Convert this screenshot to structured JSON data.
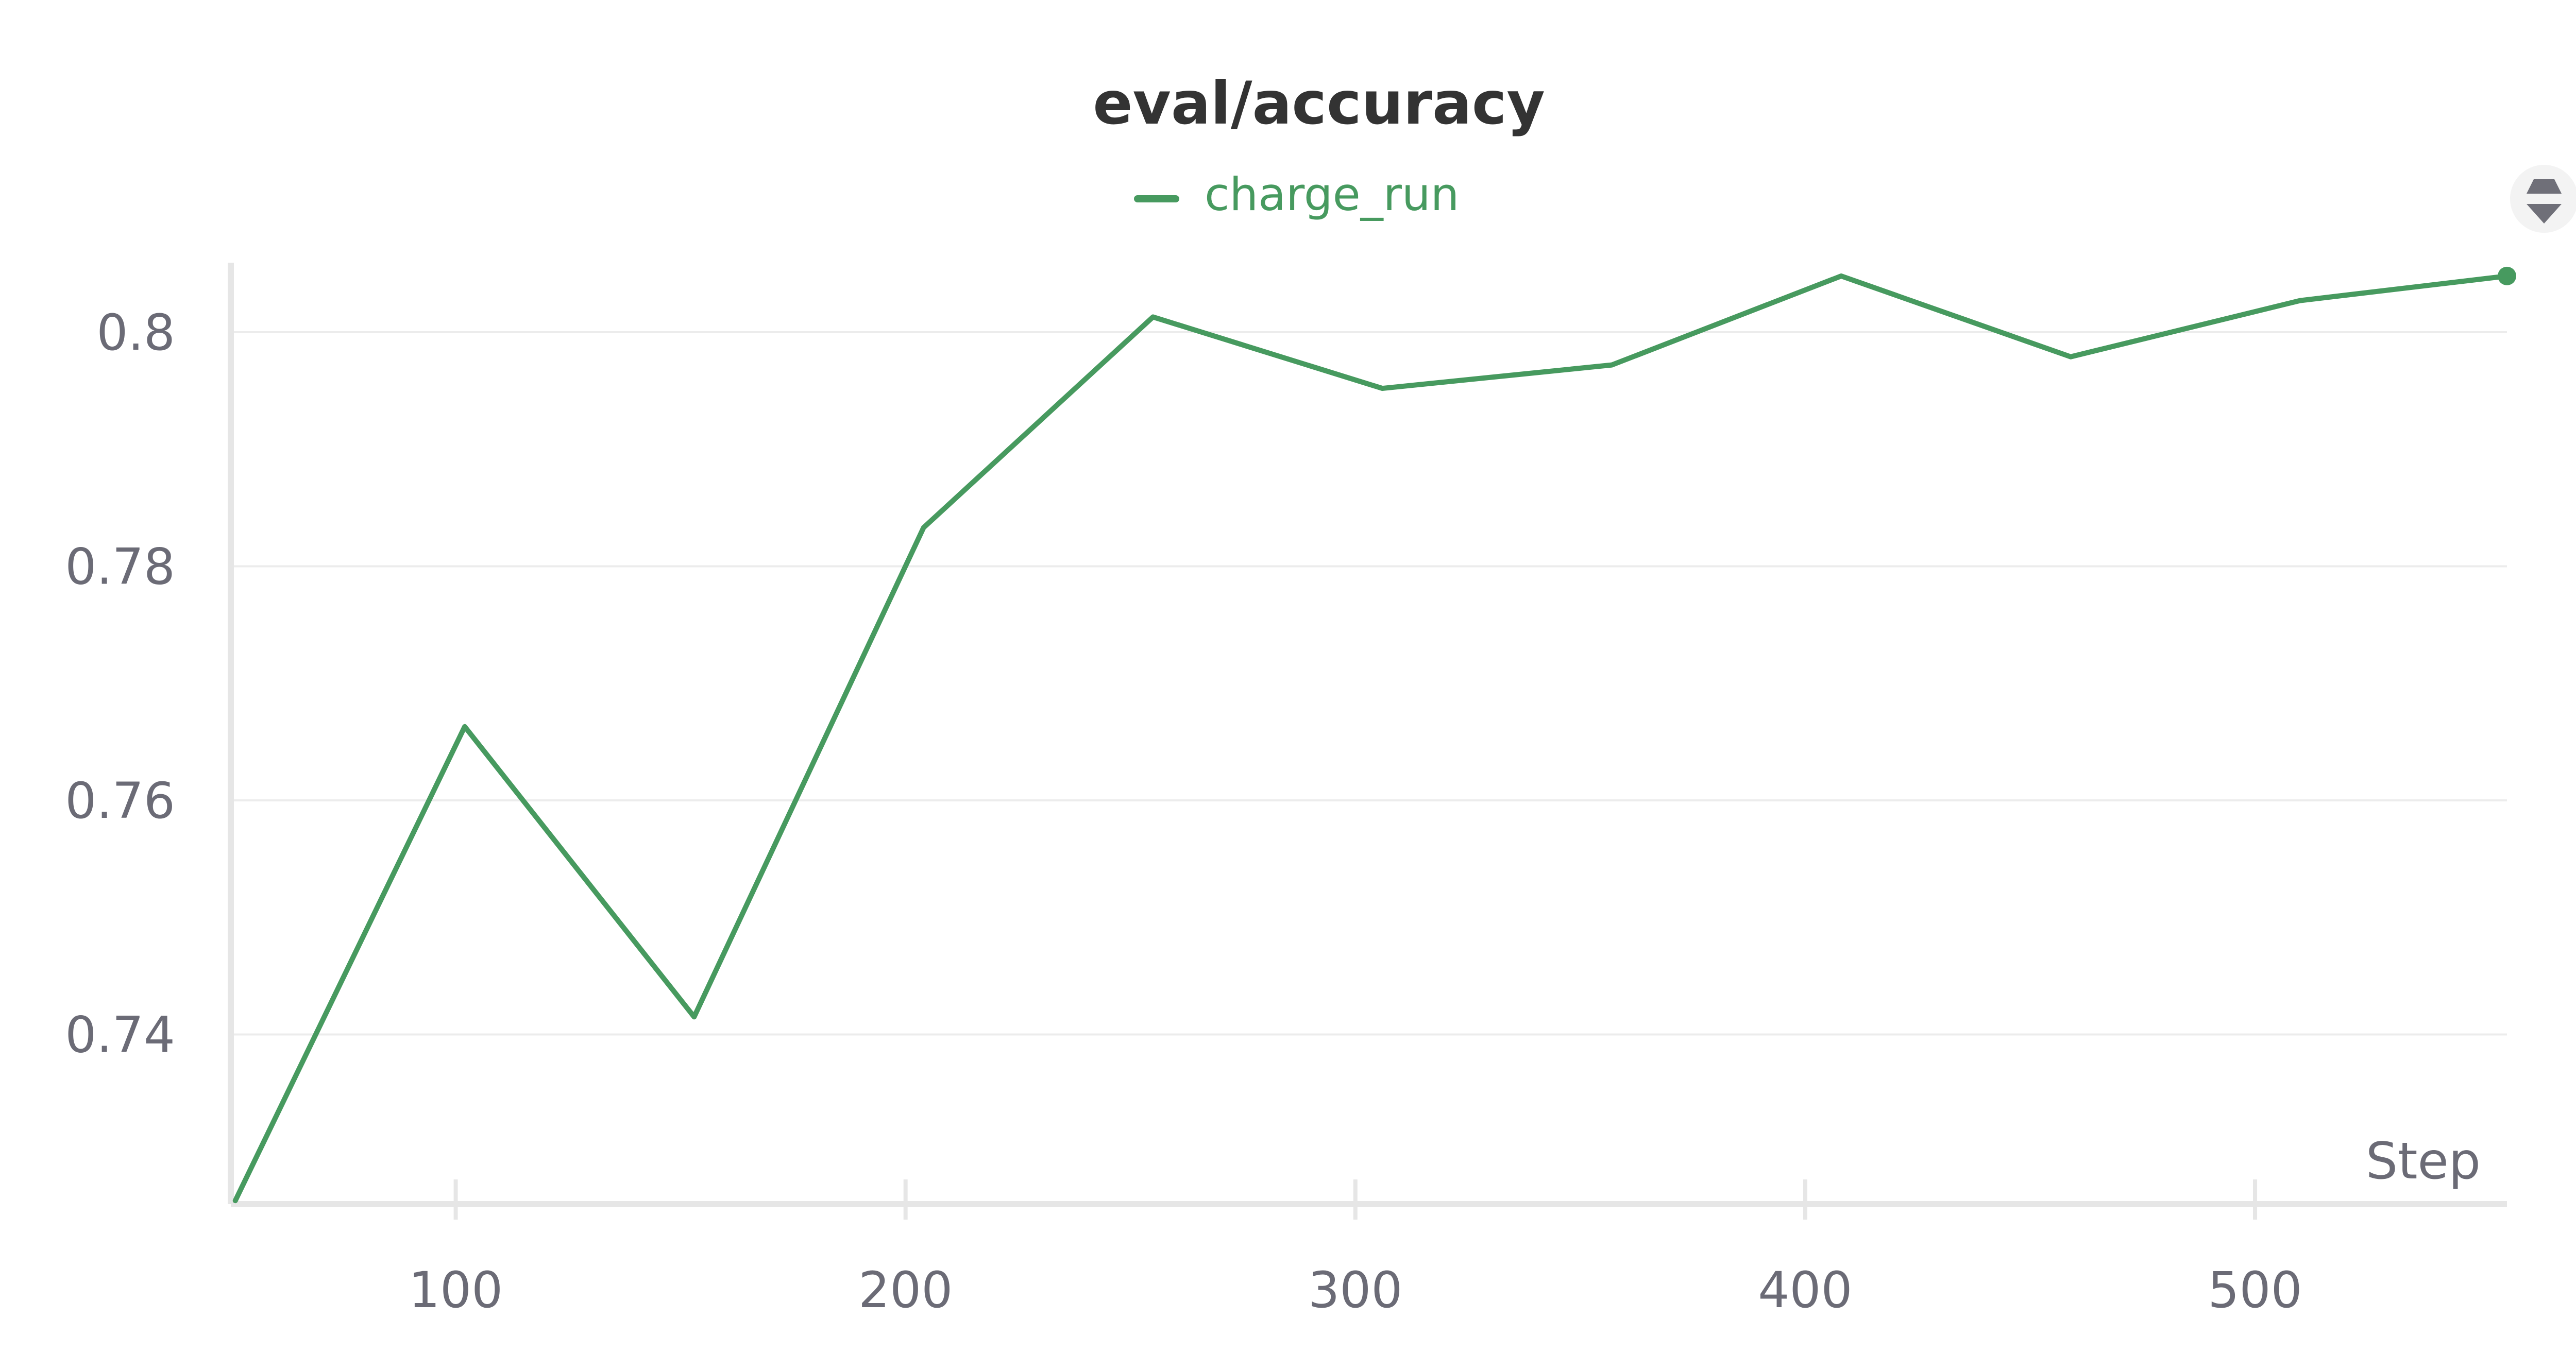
{
  "chart_data": {
    "type": "line",
    "title": "eval/accuracy",
    "xlabel": "Step",
    "ylabel": "",
    "xlim": [
      50,
      556
    ],
    "ylim": [
      0.7255,
      0.8055
    ],
    "x_ticks": [
      100,
      200,
      300,
      400,
      500
    ],
    "x_tick_labels": [
      "100",
      "200",
      "300",
      "400",
      "500"
    ],
    "y_ticks": [
      0.74,
      0.76,
      0.78,
      0.8
    ],
    "y_tick_labels": [
      "0.74",
      "0.76",
      "0.78",
      "0.8"
    ],
    "grid": true,
    "legend_position": "top-center",
    "series": [
      {
        "name": "charge_run",
        "color": "#479A5F",
        "x": [
          51,
          102,
          153,
          204,
          255,
          306,
          357,
          408,
          459,
          510,
          556
        ],
        "y": [
          0.7258,
          0.7663,
          0.7415,
          0.7833,
          0.8013,
          0.7952,
          0.7972,
          0.8048,
          0.7979,
          0.8027,
          0.8048
        ]
      }
    ]
  },
  "colors": {
    "axis": "#e6e6e6",
    "grid": "#ececec",
    "tick_text": "#6b6b76",
    "title_text": "#333333"
  },
  "icons": {
    "panel_control": "sort-arrows-icon"
  }
}
